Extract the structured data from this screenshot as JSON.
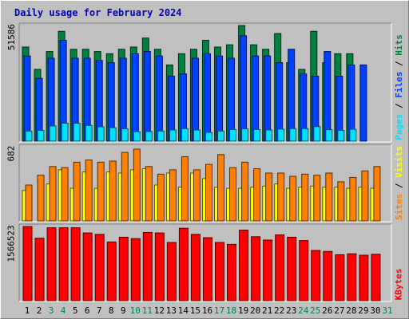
{
  "title": "Daily usage for February 2024",
  "colors": {
    "hits": "#008040",
    "files": "#0040ff",
    "pages": "#00e0ff",
    "sites": "#ff8000",
    "visits": "#ffff00",
    "kbytes": "#ff0000",
    "weekend_label": "#00805c",
    "weekday_label": "#000000"
  },
  "legend": {
    "top": [
      "Pages",
      "Files",
      "Hits"
    ],
    "middle": [
      "Sites",
      "Visits"
    ],
    "bottom": [
      "KBytes"
    ],
    "separator": " / "
  },
  "chart_data": [
    {
      "type": "bar",
      "title": "Daily usage for February 2024",
      "ymax_label": "51586",
      "ylim": [
        0,
        51586
      ],
      "categories": [
        "1",
        "2",
        "3",
        "4",
        "5",
        "6",
        "7",
        "8",
        "9",
        "10",
        "11",
        "12",
        "13",
        "14",
        "15",
        "16",
        "17",
        "18",
        "19",
        "20",
        "21",
        "22",
        "23",
        "24",
        "25",
        "26",
        "27",
        "28",
        "29",
        "30",
        "31"
      ],
      "weekend_days": [
        "3",
        "4",
        "10",
        "11",
        "17",
        "18",
        "24",
        "25",
        "31"
      ],
      "series": [
        {
          "name": "Hits",
          "values": [
            42000,
            32000,
            40000,
            49000,
            41000,
            41000,
            40000,
            39000,
            41000,
            42000,
            46000,
            41000,
            34000,
            39000,
            41000,
            45000,
            42000,
            43000,
            51586,
            43000,
            41000,
            48000,
            35000,
            32000,
            49000,
            35000,
            39000,
            39000,
            null,
            null,
            null
          ]
        },
        {
          "name": "Files",
          "values": [
            38000,
            28000,
            37000,
            45000,
            37000,
            37000,
            36000,
            35000,
            37000,
            39000,
            40000,
            38000,
            29000,
            30000,
            37000,
            39000,
            38000,
            37000,
            47000,
            38000,
            38000,
            35000,
            41000,
            30000,
            29000,
            40000,
            29000,
            34000,
            34000,
            null,
            null
          ]
        },
        {
          "name": "Pages",
          "values": [
            4500,
            4800,
            6800,
            8000,
            8000,
            7000,
            6400,
            6000,
            5500,
            4200,
            4300,
            4500,
            5000,
            5600,
            5000,
            3900,
            4500,
            5200,
            5500,
            5200,
            5000,
            5400,
            5600,
            5600,
            6500,
            5100,
            4800,
            5300,
            null,
            null,
            null
          ]
        }
      ]
    },
    {
      "type": "bar",
      "ymax_label": "682",
      "ylim": [
        0,
        682
      ],
      "categories": [
        "1",
        "2",
        "3",
        "4",
        "5",
        "6",
        "7",
        "8",
        "9",
        "10",
        "11",
        "12",
        "13",
        "14",
        "15",
        "16",
        "17",
        "18",
        "19",
        "20",
        "21",
        "22",
        "23",
        "24",
        "25",
        "26",
        "27",
        "28",
        "29",
        "30",
        "31"
      ],
      "series": [
        {
          "name": "Sites",
          "values": [
            330,
            420,
            500,
            490,
            540,
            560,
            540,
            550,
            630,
            660,
            500,
            430,
            470,
            590,
            470,
            520,
            610,
            490,
            540,
            480,
            440,
            440,
            410,
            430,
            420,
            440,
            360,
            400,
            460,
            500,
            null
          ]
        },
        {
          "name": "Visits",
          "values": [
            280,
            null,
            340,
            470,
            300,
            450,
            300,
            450,
            440,
            470,
            480,
            330,
            440,
            310,
            440,
            390,
            310,
            300,
            300,
            310,
            320,
            340,
            300,
            310,
            320,
            310,
            310,
            300,
            310,
            300,
            null
          ]
        }
      ]
    },
    {
      "type": "bar",
      "ymax_label": "1566523",
      "ylim": [
        0,
        1566523
      ],
      "categories": [
        "1",
        "2",
        "3",
        "4",
        "5",
        "6",
        "7",
        "8",
        "9",
        "10",
        "11",
        "12",
        "13",
        "14",
        "15",
        "16",
        "17",
        "18",
        "19",
        "20",
        "21",
        "22",
        "23",
        "24",
        "25",
        "26",
        "27",
        "28",
        "29",
        "30",
        "31"
      ],
      "series": [
        {
          "name": "KBytes",
          "values": [
            1566523,
            1320000,
            1540000,
            1540000,
            1540000,
            1430000,
            1400000,
            1240000,
            1340000,
            1310000,
            1440000,
            1430000,
            1230000,
            1530000,
            1400000,
            1330000,
            1230000,
            1190000,
            1490000,
            1350000,
            1280000,
            1390000,
            1340000,
            1270000,
            1060000,
            1040000,
            970000,
            990000,
            960000,
            980000,
            null
          ]
        }
      ]
    }
  ]
}
